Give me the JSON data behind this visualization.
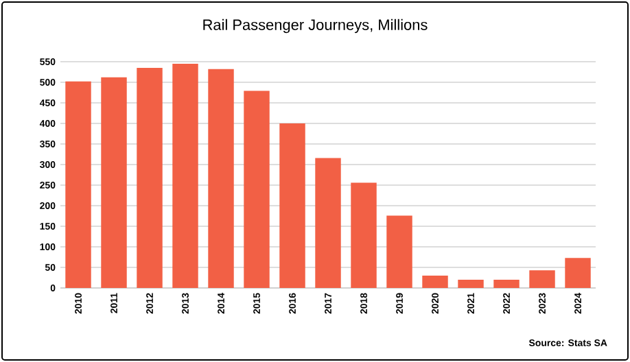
{
  "chart_data": {
    "type": "bar",
    "title": "Rail Passenger Journeys, Millions",
    "categories": [
      "2010",
      "2011",
      "2012",
      "2013",
      "2014",
      "2015",
      "2016",
      "2017",
      "2018",
      "2019",
      "2020",
      "2021",
      "2022",
      "2023",
      "2024"
    ],
    "values": [
      502,
      512,
      535,
      545,
      532,
      479,
      400,
      316,
      256,
      176,
      30,
      20,
      20,
      43,
      73
    ],
    "color": "#f26045",
    "ylim": [
      0,
      550
    ],
    "yticks": [
      0,
      50,
      100,
      150,
      200,
      250,
      300,
      350,
      400,
      450,
      500,
      550
    ],
    "grid": "y",
    "annotations": [
      "Source: Stats SA"
    ]
  }
}
